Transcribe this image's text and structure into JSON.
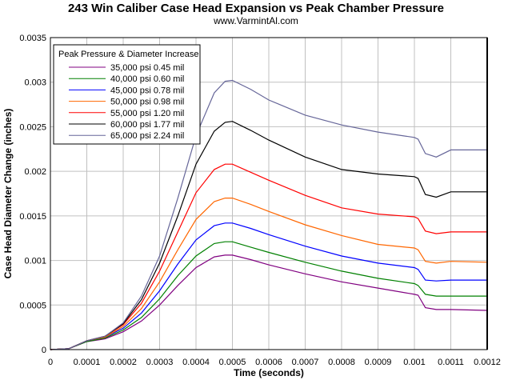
{
  "chart_data": {
    "type": "line",
    "title": "243 Win Caliber Case Head Expansion vs Peak Chamber Pressure",
    "subtitle": "www.VarmintAl.com",
    "xlabel": "Time (seconds)",
    "ylabel": "Case Head Diameter Change (inches)",
    "xlim": [
      0,
      0.0012
    ],
    "ylim": [
      0,
      0.0035
    ],
    "xticks": [
      "0",
      "0.0001",
      "0.0002",
      "0.0003",
      "0.0004",
      "0.0005",
      "0.0006",
      "0.0007",
      "0.0008",
      "0.0009",
      "0.001",
      "0.0011",
      "0.0012"
    ],
    "yticks": [
      "0",
      "0.0005",
      "0.001",
      "0.0015",
      "0.002",
      "0.0025",
      "0.003",
      "0.0035"
    ],
    "grid": true,
    "legend_title": "Peak Pressure & Diameter Increase",
    "legend_position": "top-left",
    "x": [
      0,
      5e-05,
      0.0001,
      0.00015,
      0.0002,
      0.00025,
      0.0003,
      0.00035,
      0.0004,
      0.00045,
      0.00048,
      0.0005,
      0.00055,
      0.0006,
      0.0007,
      0.0008,
      0.0009,
      0.001,
      0.00101,
      0.00103,
      0.00106,
      0.0011,
      0.0012
    ],
    "series": [
      {
        "name": "35,000 psi  0.45 mil",
        "color": "#800080",
        "values": [
          0,
          1e-05,
          9e-05,
          0.00012,
          0.0002,
          0.00032,
          0.0005,
          0.00072,
          0.00092,
          0.00104,
          0.00106,
          0.00106,
          0.00101,
          0.00095,
          0.00085,
          0.00076,
          0.00069,
          0.00062,
          0.00061,
          0.00047,
          0.00045,
          0.00045,
          0.00044
        ]
      },
      {
        "name": "40,000 psi  0.60 mil",
        "color": "#008000",
        "values": [
          0,
          1e-05,
          9e-05,
          0.00013,
          0.00022,
          0.00036,
          0.00057,
          0.00083,
          0.00105,
          0.00119,
          0.00121,
          0.00121,
          0.00115,
          0.00109,
          0.00098,
          0.00088,
          0.0008,
          0.00074,
          0.00072,
          0.00062,
          0.0006,
          0.0006,
          0.0006
        ]
      },
      {
        "name": "45,000 psi  0.78 mil",
        "color": "#0000ff",
        "values": [
          0,
          1e-05,
          0.0001,
          0.00014,
          0.00024,
          0.00041,
          0.00066,
          0.00096,
          0.00123,
          0.00139,
          0.00142,
          0.00142,
          0.00136,
          0.00129,
          0.00116,
          0.00105,
          0.00097,
          0.00092,
          0.0009,
          0.00078,
          0.00077,
          0.00078,
          0.00078
        ]
      },
      {
        "name": "50,000 psi  0.98 mil",
        "color": "#ff6600",
        "values": [
          0,
          1e-05,
          0.0001,
          0.00014,
          0.00026,
          0.00046,
          0.00076,
          0.00112,
          0.00146,
          0.00166,
          0.0017,
          0.0017,
          0.00163,
          0.00155,
          0.0014,
          0.00128,
          0.00118,
          0.00114,
          0.00112,
          0.00099,
          0.00097,
          0.00099,
          0.00098
        ]
      },
      {
        "name": "55,000 psi  1.20 mil",
        "color": "#ff0000",
        "values": [
          0,
          1e-05,
          0.0001,
          0.00015,
          0.00028,
          0.00052,
          0.00088,
          0.00132,
          0.00176,
          0.00202,
          0.00208,
          0.00208,
          0.00199,
          0.0019,
          0.00173,
          0.00159,
          0.00152,
          0.00149,
          0.00147,
          0.00133,
          0.0013,
          0.00132,
          0.00132
        ]
      },
      {
        "name": "60,000 psi  1.77 mil",
        "color": "#000000",
        "values": [
          0,
          1e-05,
          0.0001,
          0.00015,
          0.00029,
          0.00056,
          0.00097,
          0.0015,
          0.00208,
          0.00245,
          0.00255,
          0.00256,
          0.00246,
          0.00235,
          0.00216,
          0.00202,
          0.00197,
          0.00194,
          0.00192,
          0.00174,
          0.00171,
          0.00177,
          0.00177
        ]
      },
      {
        "name": "65,000 psi  2.24 mil",
        "color": "#666699",
        "values": [
          0,
          1e-05,
          0.0001,
          0.00015,
          0.0003,
          0.0006,
          0.00105,
          0.0017,
          0.0024,
          0.00288,
          0.00301,
          0.00302,
          0.00292,
          0.0028,
          0.00263,
          0.00252,
          0.00244,
          0.00238,
          0.00236,
          0.0022,
          0.00216,
          0.00224,
          0.00224
        ]
      }
    ]
  }
}
